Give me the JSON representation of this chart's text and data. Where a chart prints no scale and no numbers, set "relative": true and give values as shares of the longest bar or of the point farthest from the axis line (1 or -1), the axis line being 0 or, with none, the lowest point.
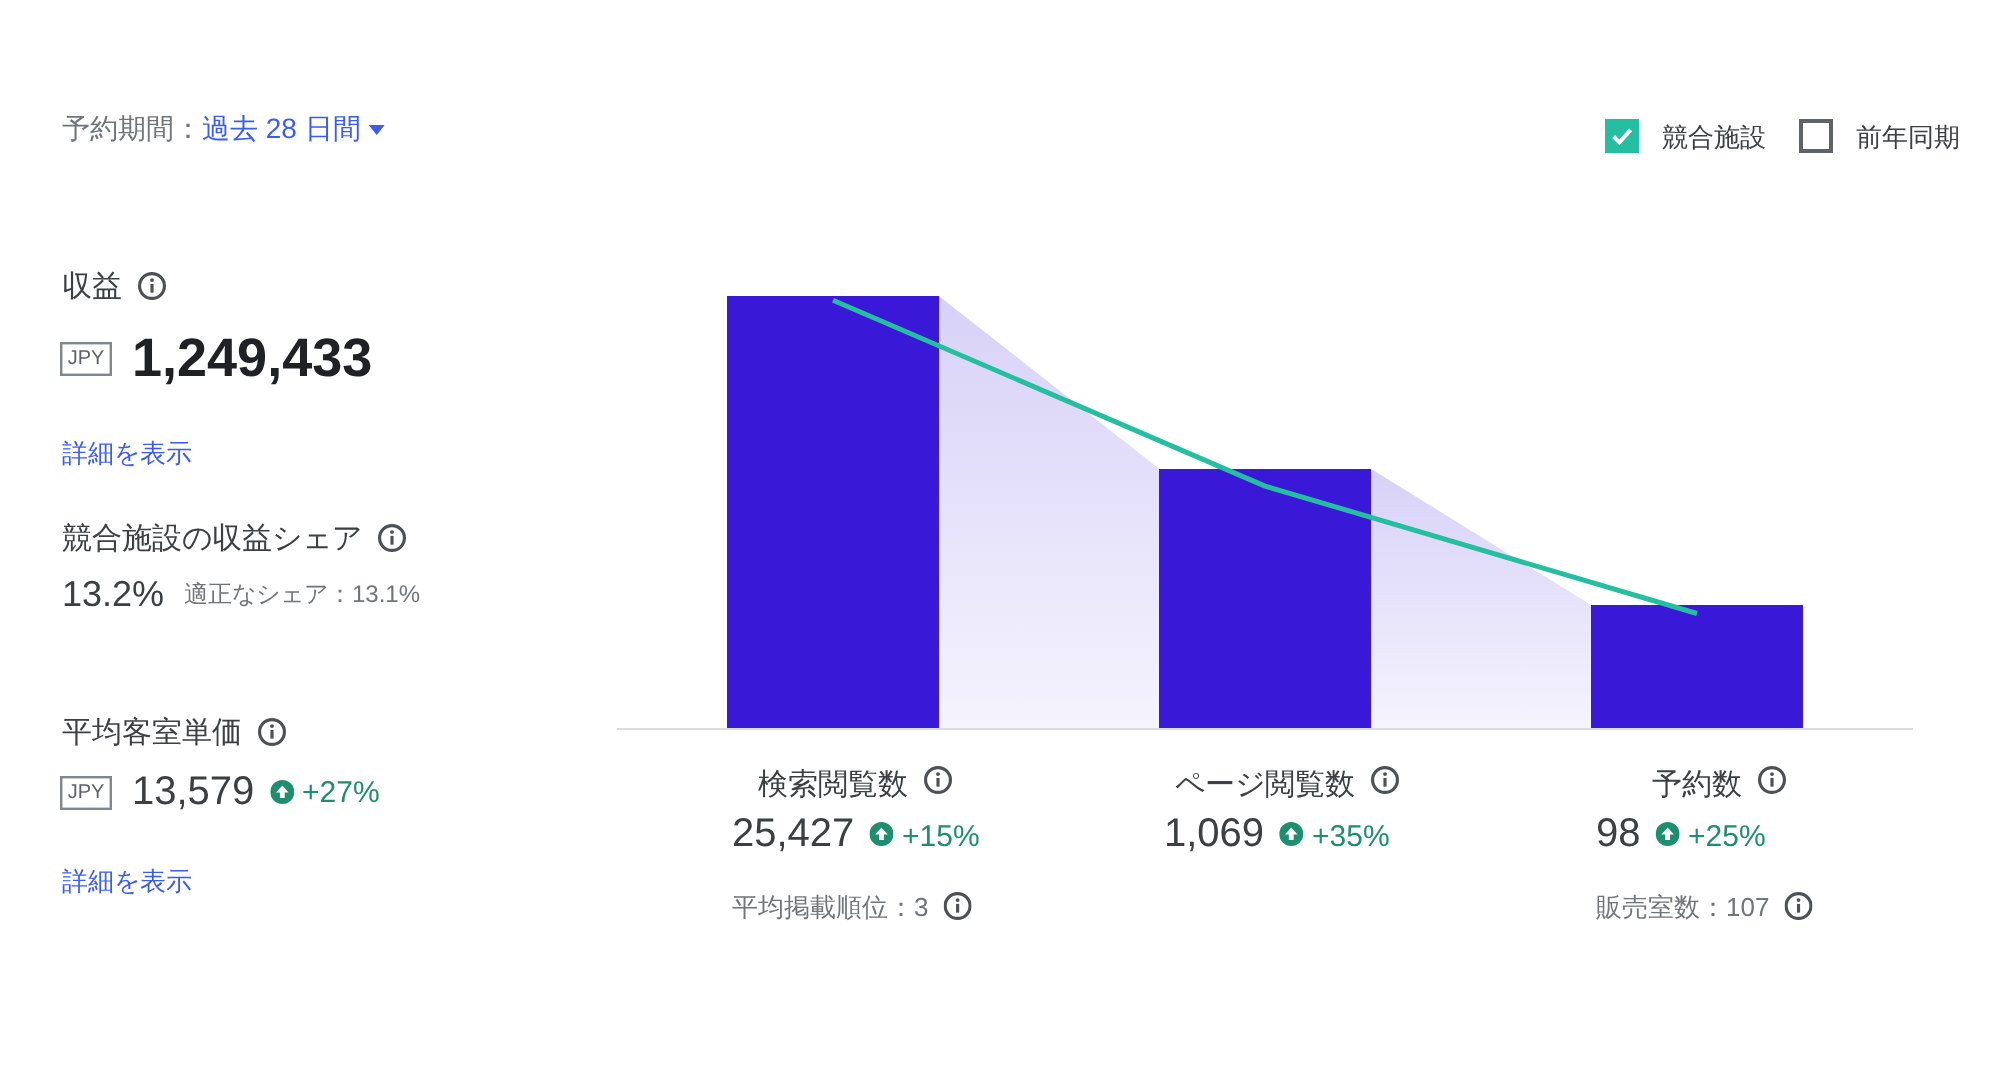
{
  "chart_data": [
    {
      "type": "other",
      "annotations": [
        "予約期間：",
        "過去 28 日間",
        "収益",
        "JPY",
        "1,249,433",
        "詳細を表示",
        "競合施設の収益シェア",
        "13.2%",
        "適正なシェア：13.1%",
        "平均客室単価",
        "JPY",
        "13,579",
        "+27%",
        "詳細を表示"
      ]
    },
    {
      "type": "bar",
      "relative": true,
      "categories": [
        "検索閲覧数",
        "ページ閲覧数",
        "予約数"
      ],
      "series": [
        {
          "color": "#3a18d8",
          "values": [
            1,
            0.6,
            0.285
          ]
        },
        {
          "name": "競合施設",
          "type": "line",
          "color": "#26bea0",
          "values": [
            0.99,
            0.56,
            0.265
          ]
        },
        {
          "name": "前年同期",
          "type": "line",
          "color": "#5f6368",
          "values": [
            null,
            null,
            null
          ]
        }
      ],
      "legend": "top right",
      "annotations": [
        "25,427",
        "+15%",
        "平均掲載順位：3",
        "1,069",
        "+35%",
        "98",
        "+25%",
        "販売室数：107"
      ]
    }
  ]
}
